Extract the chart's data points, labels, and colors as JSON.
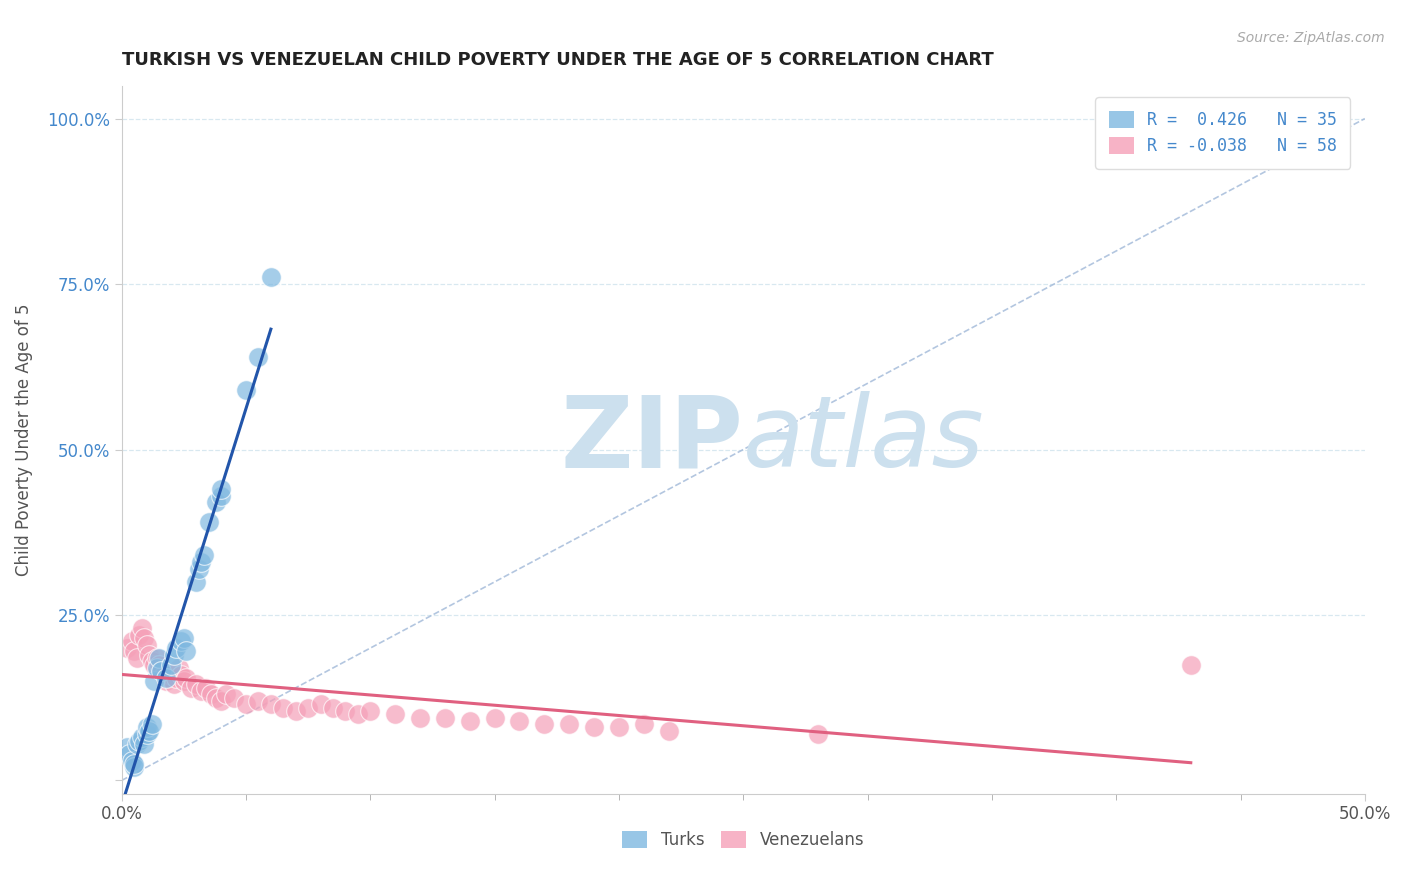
{
  "title": "TURKISH VS VENEZUELAN CHILD POVERTY UNDER THE AGE OF 5 CORRELATION CHART",
  "source": "Source: ZipAtlas.com",
  "ylabel_label": "Child Poverty Under the Age of 5",
  "xlim": [
    0.0,
    0.5
  ],
  "ylim": [
    -0.02,
    1.05
  ],
  "legend_entries": [
    {
      "label": "R =  0.426   N = 35",
      "color": "#7fb8e0"
    },
    {
      "label": "R = -0.038   N = 58",
      "color": "#f9a8bc"
    }
  ],
  "turks_x": [
    0.002,
    0.003,
    0.004,
    0.005,
    0.005,
    0.006,
    0.007,
    0.008,
    0.009,
    0.01,
    0.01,
    0.011,
    0.012,
    0.013,
    0.014,
    0.015,
    0.016,
    0.018,
    0.02,
    0.021,
    0.022,
    0.024,
    0.025,
    0.026,
    0.03,
    0.031,
    0.032,
    0.033,
    0.035,
    0.038,
    0.04,
    0.04,
    0.05,
    0.055,
    0.06
  ],
  "turks_y": [
    0.05,
    0.04,
    0.03,
    0.02,
    0.025,
    0.055,
    0.06,
    0.065,
    0.055,
    0.07,
    0.08,
    0.075,
    0.085,
    0.15,
    0.17,
    0.185,
    0.165,
    0.155,
    0.175,
    0.19,
    0.2,
    0.21,
    0.215,
    0.195,
    0.3,
    0.32,
    0.33,
    0.34,
    0.39,
    0.42,
    0.43,
    0.44,
    0.59,
    0.64,
    0.76
  ],
  "venezuelans_x": [
    0.002,
    0.004,
    0.005,
    0.006,
    0.007,
    0.008,
    0.009,
    0.01,
    0.011,
    0.012,
    0.013,
    0.014,
    0.015,
    0.016,
    0.017,
    0.018,
    0.019,
    0.02,
    0.021,
    0.022,
    0.023,
    0.024,
    0.025,
    0.026,
    0.028,
    0.03,
    0.032,
    0.034,
    0.036,
    0.038,
    0.04,
    0.042,
    0.045,
    0.05,
    0.055,
    0.06,
    0.065,
    0.07,
    0.075,
    0.08,
    0.085,
    0.09,
    0.095,
    0.1,
    0.11,
    0.12,
    0.13,
    0.14,
    0.15,
    0.16,
    0.17,
    0.18,
    0.19,
    0.2,
    0.21,
    0.22,
    0.28,
    0.43
  ],
  "venezuelans_y": [
    0.2,
    0.21,
    0.195,
    0.185,
    0.22,
    0.23,
    0.215,
    0.205,
    0.19,
    0.18,
    0.175,
    0.185,
    0.175,
    0.165,
    0.16,
    0.15,
    0.155,
    0.16,
    0.145,
    0.155,
    0.17,
    0.16,
    0.15,
    0.155,
    0.14,
    0.145,
    0.135,
    0.14,
    0.13,
    0.125,
    0.12,
    0.13,
    0.125,
    0.115,
    0.12,
    0.115,
    0.11,
    0.105,
    0.11,
    0.115,
    0.11,
    0.105,
    0.1,
    0.105,
    0.1,
    0.095,
    0.095,
    0.09,
    0.095,
    0.09,
    0.085,
    0.085,
    0.08,
    0.08,
    0.085,
    0.075,
    0.07,
    0.175
  ],
  "turks_color": "#7fb8e0",
  "venezuelans_color": "#f5a0b8",
  "turks_regression_color": "#2255aa",
  "venezuelans_regression_color": "#e06080",
  "diag_color": "#a0b8d8",
  "background_color": "#ffffff",
  "grid_color": "#d8e8f0",
  "title_color": "#222222",
  "source_color": "#aaaaaa",
  "watermark_zip": "ZIP",
  "watermark_atlas": "atlas",
  "watermark_color": "#cce0ee"
}
